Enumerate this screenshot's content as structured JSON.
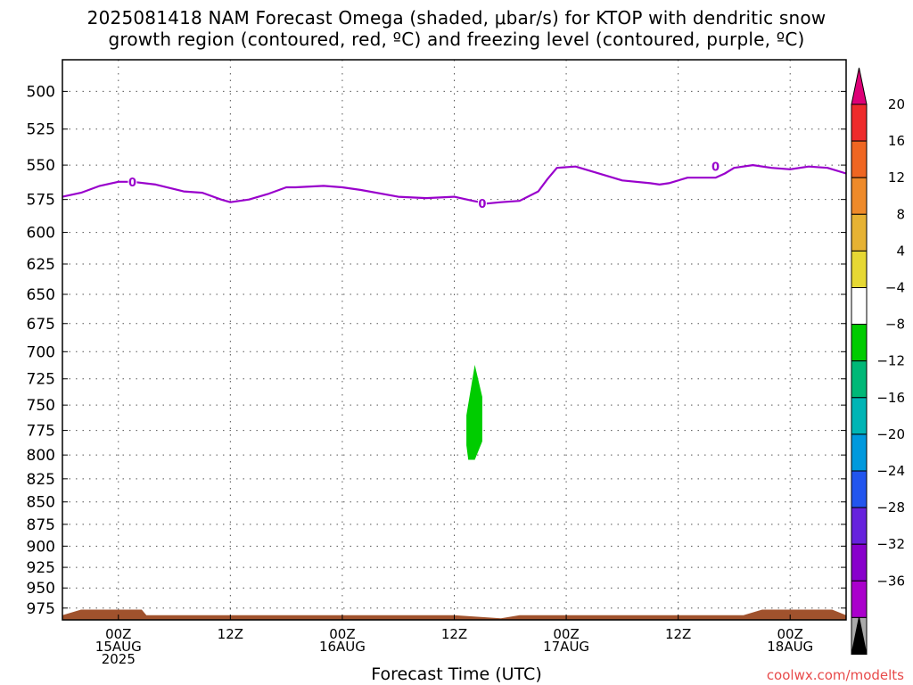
{
  "title": {
    "line1": "2025081418 NAM Forecast Omega (shaded, μbar/s) for KTOP with dendritic snow",
    "line2": "growth region (contoured, red, ºC) and freezing level (contoured, purple, ºC)"
  },
  "xlabel": "Forecast Time (UTC)",
  "credit": "coolwx.com/modelts",
  "chart_data": {
    "type": "area",
    "title": "2025081418 NAM Forecast Omega (shaded, μbar/s) for KTOP with dendritic snow growth region (contoured, red, ºC) and freezing level (contoured, purple, ºC)",
    "xlabel": "Forecast Time (UTC)",
    "ylabel": "",
    "y_scale": "log",
    "y_reversed": true,
    "ylim": [
      480,
      990
    ],
    "xlim": [
      -6,
      78
    ],
    "grid": true,
    "y_ticks": [
      500,
      525,
      550,
      575,
      600,
      625,
      650,
      675,
      700,
      725,
      750,
      775,
      800,
      825,
      850,
      875,
      900,
      925,
      950,
      975
    ],
    "x_ticks": [
      {
        "hour": 0,
        "lines": [
          "00Z",
          "15AUG",
          "2025"
        ]
      },
      {
        "hour": 12,
        "lines": [
          "12Z"
        ]
      },
      {
        "hour": 24,
        "lines": [
          "00Z",
          "16AUG"
        ]
      },
      {
        "hour": 36,
        "lines": [
          "12Z"
        ]
      },
      {
        "hour": 48,
        "lines": [
          "00Z",
          "17AUG"
        ]
      },
      {
        "hour": 60,
        "lines": [
          "12Z"
        ]
      },
      {
        "hour": 72,
        "lines": [
          "00Z",
          "18AUG"
        ]
      }
    ],
    "freezing_level": {
      "name": "0",
      "color": "#9900cc",
      "x": [
        -6,
        -4,
        -2,
        0,
        1.5,
        4,
        7,
        9,
        11,
        12,
        14,
        16,
        18,
        19,
        22,
        24,
        26,
        30,
        33,
        36,
        38,
        39.5,
        41,
        43,
        45,
        46,
        47,
        49,
        51,
        54,
        57,
        58,
        59,
        61,
        62,
        64,
        65,
        66,
        68,
        70,
        72,
        74,
        76,
        78
      ],
      "y": [
        573,
        570,
        565,
        562,
        562,
        564,
        569,
        570,
        575,
        577,
        575,
        571,
        566,
        566,
        565,
        566,
        568,
        573,
        574,
        573,
        576,
        578,
        577,
        576,
        569,
        560,
        552,
        551,
        555,
        561,
        563,
        564,
        563,
        559,
        559,
        559,
        556,
        552,
        550,
        552,
        553,
        551,
        552,
        556
      ],
      "labels": [
        {
          "x": 1.5,
          "y": 562,
          "text": "0"
        },
        {
          "x": 39,
          "y": 578,
          "text": "0"
        },
        {
          "x": 64,
          "y": 551,
          "text": "0"
        }
      ]
    },
    "omega_shaded": [
      {
        "name": "-8 to -4",
        "color": "#00cc00",
        "x": [
          37.5,
          38.2,
          39,
          39,
          38.2,
          37.3,
          37.3,
          37.5
        ],
        "y": [
          805,
          805,
          786,
          742,
          712,
          760,
          790,
          805
        ]
      }
    ],
    "terrain": {
      "color": "#a0522d",
      "surface_y": [
        984,
        977,
        977,
        984,
        984,
        988,
        984,
        984,
        977,
        977,
        984
      ],
      "x": [
        -6,
        -4,
        2.5,
        3,
        36,
        41,
        43,
        67,
        69,
        76.5,
        78
      ]
    },
    "colorbar": {
      "boundaries": [
        20,
        16,
        12,
        8,
        4,
        -4,
        -8,
        -12,
        -16,
        -20,
        -24,
        -28,
        -32,
        -36
      ],
      "colors": [
        "#ee2b2b",
        "#ef6622",
        "#ee8a2a",
        "#e6b233",
        "#e6d833",
        "#ffffff",
        "#00cc00",
        "#00b877",
        "#00b5b5",
        "#0099dd",
        "#2255ee",
        "#6622dd",
        "#8800cc",
        "#aa00cc",
        "#aaaaaa"
      ],
      "top_arrow_color": "#dd0077",
      "bottom_arrow_color": "#000000"
    }
  }
}
